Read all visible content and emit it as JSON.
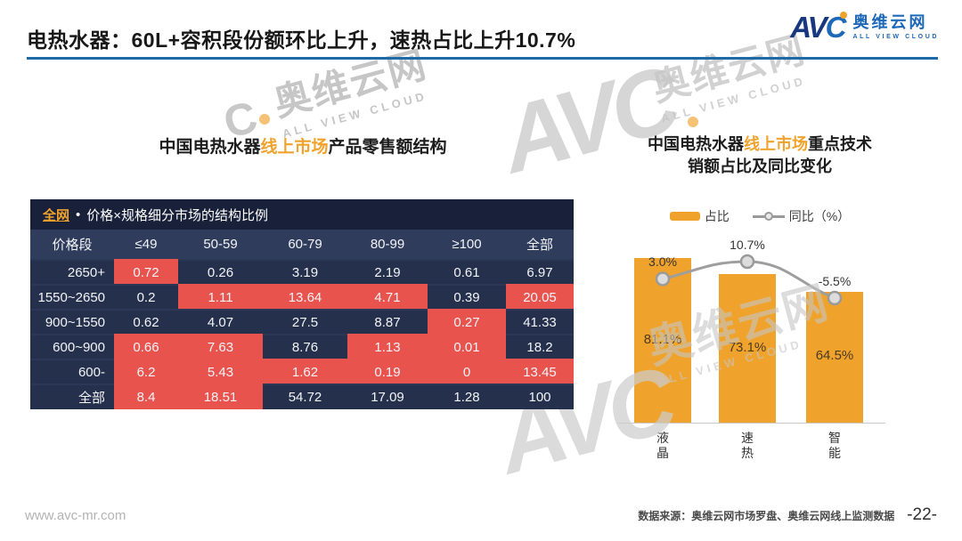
{
  "page": {
    "title": "电热水器：60L+容积段份额环比上升，速热占比上升10.7%"
  },
  "logo": {
    "letters_av": "AV",
    "letter_c": "C",
    "name_cn": "奥维云网",
    "name_en": "ALL VIEW CLOUD"
  },
  "watermark": {
    "letters": "AVC",
    "letter_c": "C",
    "name_cn": "奥维云网",
    "name_en": "ALL VIEW CLOUD"
  },
  "left_panel": {
    "title": {
      "part1": "中国电热水器",
      "highlight": "线上市场",
      "part2": "产品零售额结构"
    }
  },
  "right_panel": {
    "title": {
      "part1": "中国电热水器",
      "highlight": "线上市场",
      "part2": "重点技术",
      "line2": "销额占比及同比变化"
    },
    "legend": {
      "bar_label": "占比",
      "line_label": "同比（%）"
    }
  },
  "chart_data": [
    {
      "type": "heatmap",
      "title_highlight": "全网",
      "title_sep": "•",
      "title": "价格×规格细分市场的结构比例",
      "row_header": "价格段",
      "columns": [
        "≤49",
        "50-59",
        "60-79",
        "80-99",
        "≥100",
        "全部"
      ],
      "rows": [
        {
          "label": "2650+",
          "values": [
            0.72,
            0.26,
            3.19,
            2.19,
            0.61,
            6.97
          ],
          "highlight": [
            1,
            0,
            0,
            0,
            0,
            0
          ]
        },
        {
          "label": "1550~2650",
          "values": [
            0.2,
            1.11,
            13.64,
            4.71,
            0.39,
            20.05
          ],
          "highlight": [
            0,
            1,
            1,
            1,
            0,
            1
          ]
        },
        {
          "label": "900~1550",
          "values": [
            0.62,
            4.07,
            27.5,
            8.87,
            0.27,
            41.33
          ],
          "highlight": [
            0,
            0,
            0,
            0,
            1,
            0
          ]
        },
        {
          "label": "600~900",
          "values": [
            0.66,
            7.63,
            8.76,
            1.13,
            0.01,
            18.2
          ],
          "highlight": [
            1,
            1,
            0,
            1,
            1,
            0
          ]
        },
        {
          "label": "600-",
          "values": [
            6.2,
            5.43,
            1.62,
            0.19,
            0,
            13.45
          ],
          "highlight": [
            1,
            1,
            1,
            1,
            1,
            1
          ]
        },
        {
          "label": "全部",
          "values": [
            8.4,
            18.51,
            54.72,
            17.09,
            1.28,
            100
          ],
          "highlight": [
            1,
            1,
            0,
            0,
            0,
            0
          ]
        }
      ],
      "highlight_color": "#E8534E",
      "base_color": "#25304C"
    },
    {
      "type": "bar",
      "title": "中国电热水器线上市场重点技术销额占比及同比变化",
      "categories": [
        "液晶",
        "速热",
        "智能"
      ],
      "series": [
        {
          "name": "占比",
          "type": "bar",
          "values": [
            81.1,
            73.1,
            64.5
          ],
          "labels": [
            "81.1%",
            "73.1%",
            "64.5%"
          ],
          "color": "#F0A32C"
        },
        {
          "name": "同比（%）",
          "type": "line",
          "values": [
            3.0,
            10.7,
            -5.5
          ],
          "labels": [
            "3.0%",
            "10.7%",
            "-5.5%"
          ],
          "color": "#9E9E9E"
        }
      ],
      "legend_position": "top",
      "grid": false,
      "ylabel": "",
      "xlabel": ""
    }
  ],
  "footer": {
    "site": "www.avc-mr.com",
    "source": "数据来源：奥维云网市场罗盘、奥维云网线上监测数据",
    "page_no": "-22-"
  },
  "colors": {
    "accent_orange": "#F0A32C",
    "table_red": "#E8534E",
    "table_navy": "#25304C",
    "table_header_row": "#2F3C5C",
    "table_caption_bar": "#18203A",
    "rule_blue": "#1D6AA6",
    "logo_navy": "#17377E",
    "logo_blue": "#1E68B8",
    "line_gray": "#9E9E9E"
  }
}
